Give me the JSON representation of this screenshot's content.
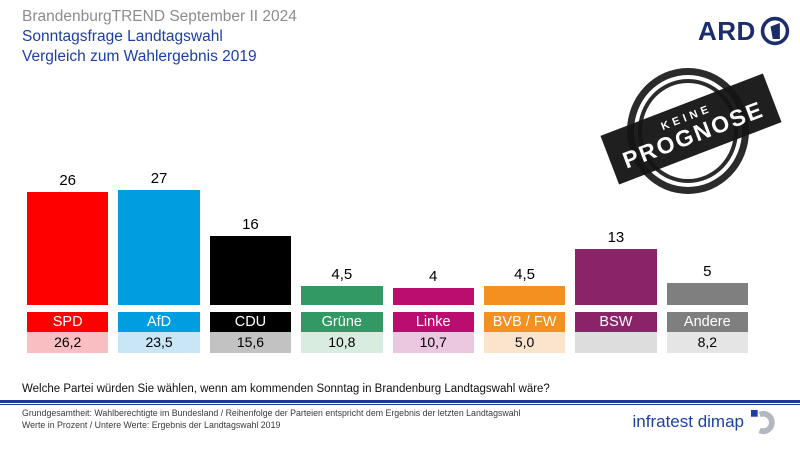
{
  "header": {
    "title": "BrandenburgTREND September II 2024",
    "subtitle1": "Sonntagsfrage Landtagswahl",
    "subtitle2": "Vergleich zum Wahlergebnis 2019"
  },
  "logos": {
    "ard_label": "ARD",
    "infratest_label": "infratest dimap"
  },
  "stamp": {
    "line1": "KEINE",
    "line2": "PROGNOSE"
  },
  "question": "Welche Partei würden Sie wählen, wenn am kommenden Sonntag in Brandenburg Landtagswahl wäre?",
  "footnote_line1": "Grundgesamtheit: Wahlberechtigte im Bundesland / Reihenfolge der Parteien entspricht dem Ergebnis der letzten Landtagswahl",
  "footnote_line2": "Werte in Prozent / Untere Werte: Ergebnis der Landtagswahl 2019",
  "colors": {
    "header_gray": "#8C8C8C",
    "header_blue": "#1C3EA5",
    "rule_navy": "#20379B",
    "ard_navy": "#1B2D6B",
    "infratest_blue": "#1E3FA6",
    "stamp_black": "#141414"
  },
  "chart_data": {
    "type": "bar",
    "title": "Sonntagsfrage Landtagswahl Brandenburg, Vergleich zum Wahlergebnis 2019",
    "unit": "percent",
    "ylim": [
      0,
      30
    ],
    "grid": false,
    "legend": "none",
    "categories": [
      "SPD",
      "AfD",
      "CDU",
      "Grüne",
      "Linke",
      "BVB / FW",
      "BSW",
      "Andere"
    ],
    "series": [
      {
        "name": "Sonntagsfrage September II 2024",
        "values": [
          26,
          27,
          16,
          4.5,
          4,
          4.5,
          13,
          5
        ]
      },
      {
        "name": "Ergebnis Landtagswahl 2019",
        "values": [
          26.2,
          23.5,
          15.6,
          10.8,
          10.7,
          5.0,
          null,
          8.2
        ]
      }
    ],
    "parties": [
      {
        "key": "spd",
        "name": "SPD",
        "value": 26,
        "value_label": "26",
        "prev_label": "26,2",
        "color": "#FF0000",
        "tint": "#F9BEC1"
      },
      {
        "key": "afd",
        "name": "AfD",
        "value": 27,
        "value_label": "27",
        "prev_label": "23,5",
        "color": "#009EE0",
        "tint": "#C8E6F6"
      },
      {
        "key": "cdu",
        "name": "CDU",
        "value": 16,
        "value_label": "16",
        "prev_label": "15,6",
        "color": "#000000",
        "tint": "#C2C2C2"
      },
      {
        "key": "gruene",
        "name": "Grüne",
        "value": 4.5,
        "value_label": "4,5",
        "prev_label": "10,8",
        "color": "#339964",
        "tint": "#D9ECE0"
      },
      {
        "key": "linke",
        "name": "Linke",
        "value": 4,
        "value_label": "4",
        "prev_label": "10,7",
        "color": "#BA0D6F",
        "tint": "#ECC7E0"
      },
      {
        "key": "bvb-fw",
        "name": "BVB / FW",
        "value": 4.5,
        "value_label": "4,5",
        "prev_label": "5,0",
        "color": "#F39020",
        "tint": "#FAE4CB"
      },
      {
        "key": "bsw",
        "name": "BSW",
        "value": 13,
        "value_label": "13",
        "prev_label": "",
        "color": "#8B2368",
        "tint": "#DDDDDD"
      },
      {
        "key": "andere",
        "name": "Andere",
        "value": 5,
        "value_label": "5",
        "prev_label": "8,2",
        "color": "#7F7F7F",
        "tint": "#E5E5E5"
      }
    ]
  }
}
